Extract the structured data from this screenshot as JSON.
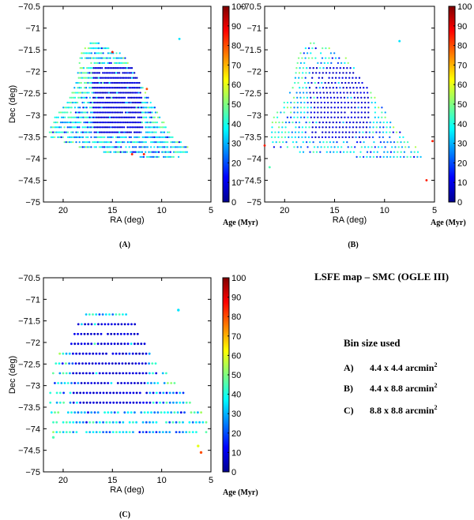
{
  "figure": {
    "info_title": "LSFE map – SMC (OGLE III)",
    "bin_title": "Bin size used",
    "bin_sizes": [
      {
        "label": "A)",
        "text": "4.4 x 4.4 arcmin",
        "sup": "2"
      },
      {
        "label": "B)",
        "text": "4.4 x 8.8 arcmin",
        "sup": "2"
      },
      {
        "label": "C)",
        "text": "8.8 x 8.8 arcmin",
        "sup": "2"
      }
    ],
    "colors": {
      "colormap": "jet",
      "jet_stops": [
        "#00008f",
        "#0000ff",
        "#00ffff",
        "#ffff00",
        "#ff0000",
        "#800000"
      ]
    }
  },
  "chart_data": [
    {
      "type": "scatter",
      "panel_label": "(A)",
      "title": "",
      "xlabel": "RA (deg)",
      "ylabel": "Dec (deg)",
      "xlim": [
        22,
        5
      ],
      "ylim": [
        -75,
        -70.5
      ],
      "xticks": [
        "20",
        "15",
        "10",
        "5"
      ],
      "yticks": [
        "−70.5",
        "−71",
        "−71.5",
        "−72",
        "−72.5",
        "−73",
        "−73.5",
        "−74",
        "−74.5",
        "−75"
      ],
      "colorbar": {
        "label": "Age (Myr)",
        "range": [
          0,
          100
        ],
        "ticks": [
          "0",
          "10",
          "20",
          "30",
          "40",
          "50",
          "60",
          "70",
          "80",
          "90",
          "100"
        ]
      },
      "bin_arcmin": [
        4.4,
        4.4
      ],
      "young_core": {
        "ra": [
          12,
          17
        ],
        "dec": [
          -73.5,
          -71.9
        ],
        "age_myr": 5
      },
      "region": [
        {
          "dec": -71.35,
          "ra_max": 17.4,
          "ra_min": 16.3
        },
        {
          "dec": -71.6,
          "ra_max": 18.2,
          "ra_min": 14.0
        },
        {
          "dec": -71.9,
          "ra_max": 18.4,
          "ra_min": 13.0
        },
        {
          "dec": -72.3,
          "ra_max": 18.7,
          "ra_min": 12.0
        },
        {
          "dec": -72.7,
          "ra_max": 19.5,
          "ra_min": 11.0
        },
        {
          "dec": -73.1,
          "ra_max": 21.0,
          "ra_min": 10.0
        },
        {
          "dec": -73.5,
          "ra_max": 21.5,
          "ra_min": 8.5
        },
        {
          "dec": -73.8,
          "ra_max": 17.5,
          "ra_min": 7.0
        },
        {
          "dec": -74.0,
          "ra_max": 11.0,
          "ra_min": 8.5
        }
      ],
      "outliers": [
        {
          "ra": 8.2,
          "dec": -71.25,
          "age_myr": 35
        },
        {
          "ra": 13.0,
          "dec": -73.9,
          "age_myr": 85
        },
        {
          "ra": 11.8,
          "dec": -73.9,
          "age_myr": 85
        },
        {
          "ra": 15.0,
          "dec": -71.55,
          "age_myr": 85
        },
        {
          "ra": 11.5,
          "dec": -72.4,
          "age_myr": 80
        }
      ]
    },
    {
      "type": "scatter",
      "panel_label": "(B)",
      "title": "",
      "xlabel": "RA (deg)",
      "ylabel": "",
      "xlim": [
        22,
        5
      ],
      "ylim": [
        -75,
        -70.5
      ],
      "xticks": [
        "20",
        "15",
        "10",
        "5"
      ],
      "yticks": [
        "−70.5",
        "−71",
        "−71.5",
        "−72",
        "−72.5",
        "−73",
        "−73.5",
        "−74",
        "−74.5",
        "−75"
      ],
      "colorbar": {
        "label": "Age (Myr)",
        "range": [
          0,
          100
        ],
        "ticks": [
          "0",
          "10",
          "20",
          "30",
          "40",
          "50",
          "60",
          "70",
          "80",
          "90",
          "100"
        ]
      },
      "bin_arcmin": [
        4.4,
        8.8
      ],
      "young_core": {
        "ra": [
          11.5,
          17.5
        ],
        "dec": [
          -73.6,
          -71.9
        ],
        "age_myr": 5
      },
      "region": [
        {
          "dec": -71.35,
          "ra_max": 17.4,
          "ra_min": 16.5
        },
        {
          "dec": -71.6,
          "ra_max": 18.5,
          "ra_min": 14.0
        },
        {
          "dec": -71.9,
          "ra_max": 18.8,
          "ra_min": 13.0
        },
        {
          "dec": -72.3,
          "ra_max": 19.0,
          "ra_min": 12.0
        },
        {
          "dec": -72.7,
          "ra_max": 20.0,
          "ra_min": 10.5
        },
        {
          "dec": -73.1,
          "ra_max": 21.2,
          "ra_min": 9.5
        },
        {
          "dec": -73.5,
          "ra_max": 21.3,
          "ra_min": 8.0
        },
        {
          "dec": -73.8,
          "ra_max": 21.0,
          "ra_min": 6.5
        },
        {
          "dec": -74.0,
          "ra_max": 11.0,
          "ra_min": 6.0
        }
      ],
      "outliers": [
        {
          "ra": 8.5,
          "dec": -71.3,
          "age_myr": 35
        },
        {
          "ra": 21.5,
          "dec": -74.2,
          "age_myr": 45
        },
        {
          "ra": 5.8,
          "dec": -74.5,
          "age_myr": 85
        },
        {
          "ra": 5.2,
          "dec": -73.6,
          "age_myr": 85
        },
        {
          "ra": 22.0,
          "dec": -73.7,
          "age_myr": 85
        }
      ]
    },
    {
      "type": "scatter",
      "panel_label": "(C)",
      "title": "",
      "xlabel": "RA (deg)",
      "ylabel": "Dec (deg)",
      "xlim": [
        22,
        5
      ],
      "ylim": [
        -75,
        -70.5
      ],
      "xticks": [
        "20",
        "15",
        "10",
        "5"
      ],
      "yticks": [
        "−70.5",
        "−71",
        "−71.5",
        "−72",
        "−72.5",
        "−73",
        "−73.5",
        "−74",
        "−74.5",
        "−75"
      ],
      "colorbar": {
        "label": "Age (Myr)",
        "range": [
          0,
          100
        ],
        "ticks": [
          "0",
          "10",
          "20",
          "30",
          "40",
          "50",
          "60",
          "70",
          "80",
          "90",
          "100"
        ]
      },
      "bin_arcmin": [
        8.8,
        8.8
      ],
      "young_core": {
        "ra": [
          11.5,
          19
        ],
        "dec": [
          -73.6,
          -71.5
        ],
        "age_myr": 5
      },
      "region": [
        {
          "dec": -71.35,
          "ra_max": 18.0,
          "ra_min": 13.0
        },
        {
          "dec": -71.6,
          "ra_max": 18.5,
          "ra_min": 12.5
        },
        {
          "dec": -71.9,
          "ra_max": 19.0,
          "ra_min": 12.0
        },
        {
          "dec": -72.3,
          "ra_max": 20.5,
          "ra_min": 11.0
        },
        {
          "dec": -72.7,
          "ra_max": 21.0,
          "ra_min": 9.5
        },
        {
          "dec": -73.1,
          "ra_max": 21.3,
          "ra_min": 8.0
        },
        {
          "dec": -73.5,
          "ra_max": 21.3,
          "ra_min": 6.0
        },
        {
          "dec": -73.8,
          "ra_max": 21.0,
          "ra_min": 5.3
        },
        {
          "dec": -74.1,
          "ra_max": 21.0,
          "ra_min": 5.3
        }
      ],
      "outliers": [
        {
          "ra": 8.3,
          "dec": -71.25,
          "age_myr": 35
        },
        {
          "ra": 6.0,
          "dec": -74.55,
          "age_myr": 80
        },
        {
          "ra": 6.3,
          "dec": -74.4,
          "age_myr": 60
        },
        {
          "ra": 21.0,
          "dec": -74.2,
          "age_myr": 45
        }
      ]
    }
  ]
}
